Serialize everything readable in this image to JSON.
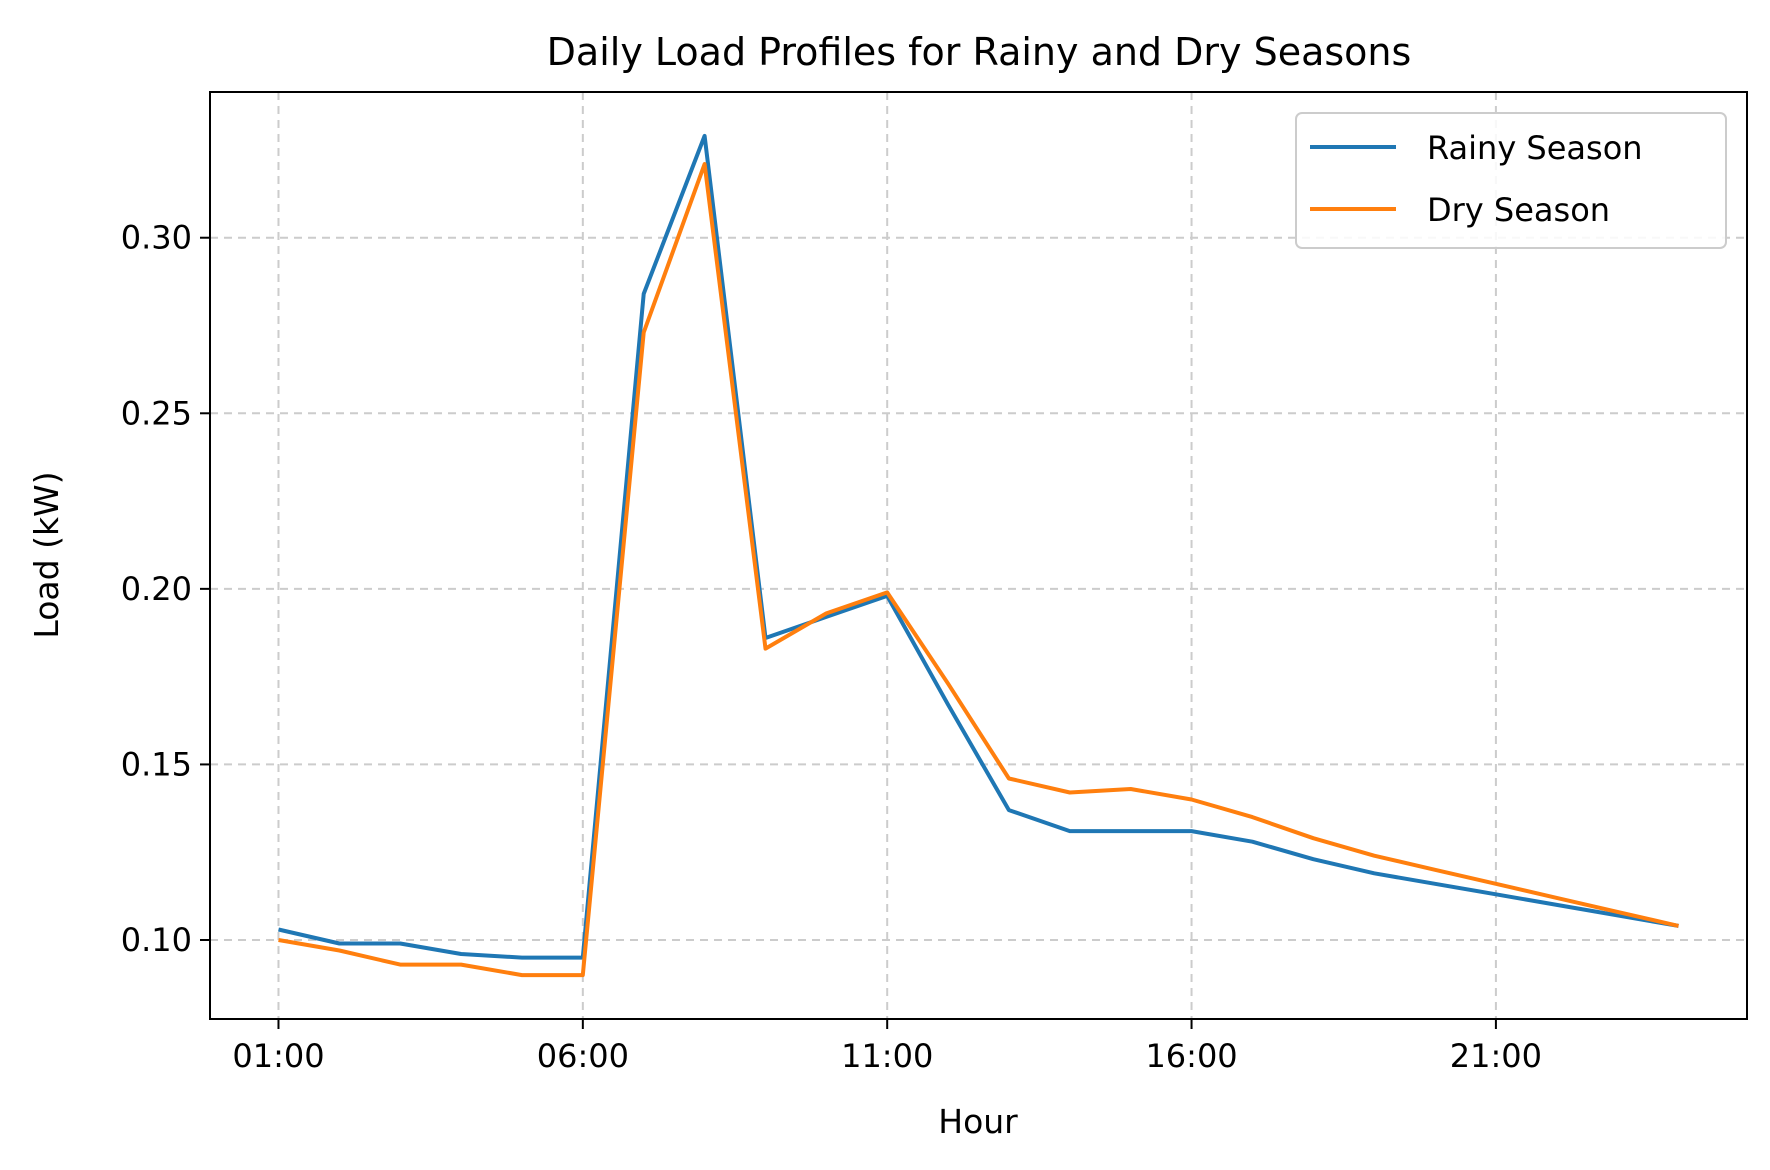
{
  "chart_data": {
    "type": "line",
    "title": "Daily Load Profiles for Rainy and Dry Seasons",
    "xlabel": "Hour",
    "ylabel": "Load (kW)",
    "x": [
      "01:00",
      "02:00",
      "03:00",
      "04:00",
      "05:00",
      "06:00",
      "07:00",
      "08:00",
      "09:00",
      "10:00",
      "11:00",
      "12:00",
      "13:00",
      "14:00",
      "15:00",
      "16:00",
      "17:00",
      "18:00",
      "19:00",
      "20:00",
      "21:00",
      "22:00",
      "23:00",
      "24:00"
    ],
    "x_ticks": [
      "01:00",
      "06:00",
      "11:00",
      "16:00",
      "21:00"
    ],
    "y_ticks": [
      "0.10",
      "0.15",
      "0.20",
      "0.25",
      "0.30"
    ],
    "xlim": [
      -1.125,
      24.125
    ],
    "ylim": [
      0.0775,
      0.3415
    ],
    "grid": true,
    "legend_position": "top-right",
    "series": [
      {
        "name": "Rainy Season",
        "color": "#1f77b4",
        "values": [
          0.103,
          0.099,
          0.099,
          0.096,
          0.095,
          0.095,
          0.284,
          0.329,
          0.186,
          0.192,
          0.198,
          0.167,
          0.137,
          0.131,
          0.131,
          0.131,
          0.128,
          0.123,
          0.119,
          0.116,
          0.113,
          0.11,
          0.107,
          0.104
        ]
      },
      {
        "name": "Dry Season",
        "color": "#ff7f0e",
        "values": [
          0.1,
          0.097,
          0.093,
          0.093,
          0.09,
          0.09,
          0.273,
          0.321,
          0.183,
          0.193,
          0.199,
          0.173,
          0.146,
          0.142,
          0.143,
          0.14,
          0.135,
          0.129,
          0.124,
          0.12,
          0.116,
          0.112,
          0.108,
          0.104
        ]
      }
    ]
  }
}
